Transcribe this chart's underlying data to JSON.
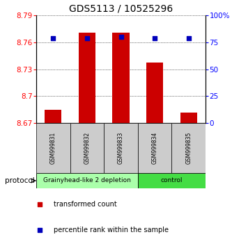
{
  "title": "GDS5113 / 10525296",
  "samples": [
    "GSM999831",
    "GSM999832",
    "GSM999833",
    "GSM999834",
    "GSM999835"
  ],
  "red_values": [
    8.685,
    8.771,
    8.771,
    8.737,
    8.682
  ],
  "blue_values": [
    79,
    79,
    80,
    79,
    79
  ],
  "ymin": 8.67,
  "ymax": 8.79,
  "yticks": [
    8.67,
    8.7,
    8.73,
    8.76,
    8.79
  ],
  "y2min": 0,
  "y2max": 100,
  "y2ticks": [
    0,
    25,
    50,
    75,
    100
  ],
  "y2ticklabels": [
    "0",
    "25",
    "50",
    "75",
    "100%"
  ],
  "bar_color": "#cc0000",
  "dot_color": "#0000bb",
  "groups": [
    {
      "label": "Grainyhead-like 2 depletion",
      "color": "#aaffaa",
      "indices": [
        0,
        1,
        2
      ]
    },
    {
      "label": "control",
      "color": "#44dd44",
      "indices": [
        3,
        4
      ]
    }
  ],
  "protocol_label": "protocol",
  "legend_items": [
    {
      "color": "#cc0000",
      "label": "transformed count"
    },
    {
      "color": "#0000bb",
      "label": "percentile rank within the sample"
    }
  ],
  "bar_bottom": 8.67,
  "title_fontsize": 10,
  "tick_fontsize": 7.5,
  "sample_fontsize": 5.5,
  "group_label_fontsize": 6.5,
  "legend_fontsize": 7
}
